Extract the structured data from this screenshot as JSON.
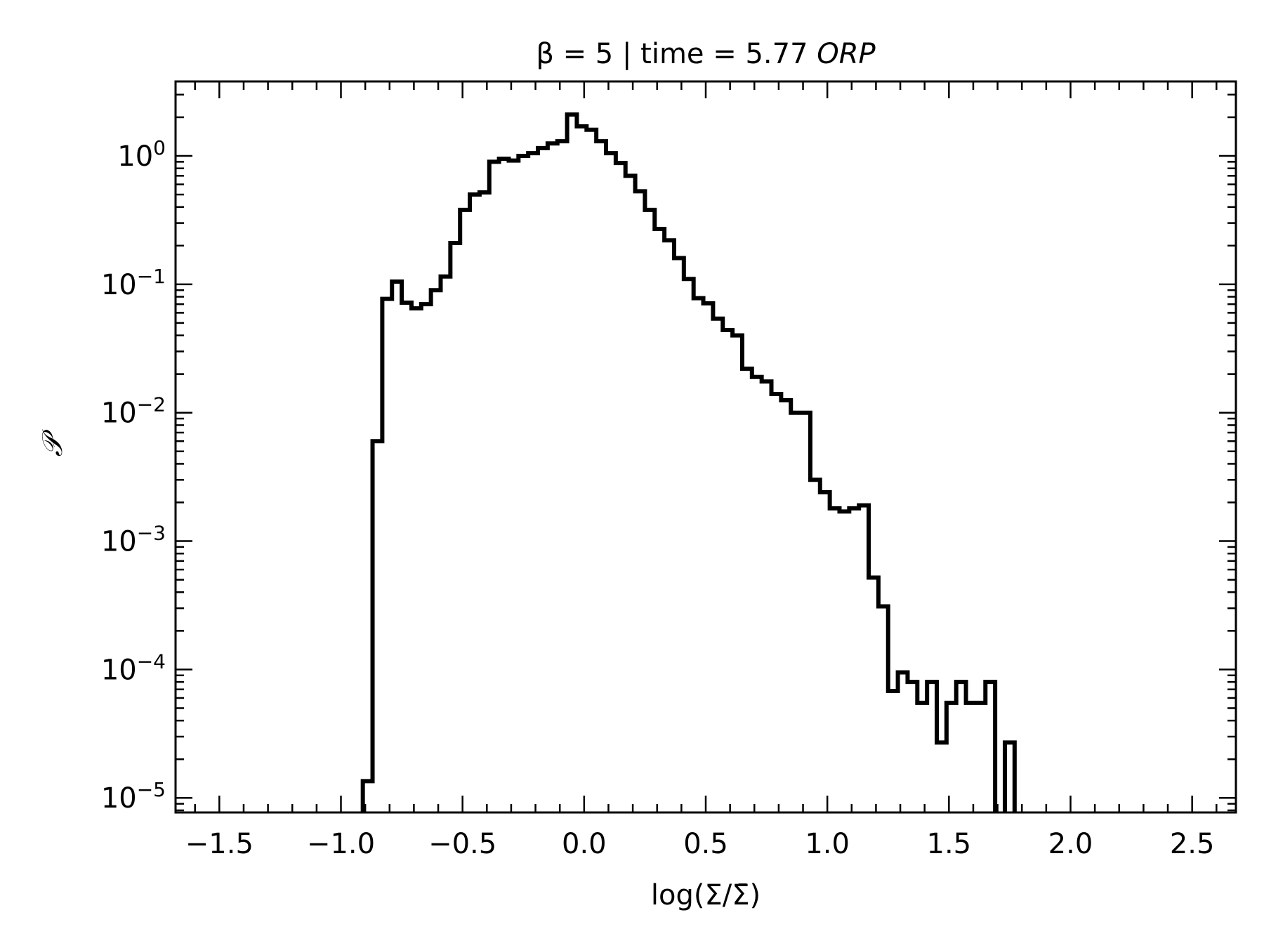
{
  "chart_data": {
    "type": "histogram-step",
    "title": {
      "prefix": "β = 5 | time = 5.77 ",
      "suffix_italic": "ORP"
    },
    "xlabel": "log(Σ/Σ̄)",
    "ylabel": "𝒫",
    "xlim": [
      -1.68,
      2.68
    ],
    "ylim": [
      7.7e-06,
      3.8
    ],
    "yscale": "log",
    "grid": false,
    "line_color": "#000000",
    "x_ticks": [
      {
        "value": -1.5,
        "label": "−1.5"
      },
      {
        "value": -1.0,
        "label": "−1.0"
      },
      {
        "value": -0.5,
        "label": "−0.5"
      },
      {
        "value": 0.0,
        "label": "0.0"
      },
      {
        "value": 0.5,
        "label": "0.5"
      },
      {
        "value": 1.0,
        "label": "1.0"
      },
      {
        "value": 1.5,
        "label": "1.5"
      },
      {
        "value": 2.0,
        "label": "2.0"
      },
      {
        "value": 2.5,
        "label": "2.5"
      }
    ],
    "y_ticks": [
      {
        "value": 1,
        "base": "10",
        "exp": "0"
      },
      {
        "value": 0.1,
        "base": "10",
        "exp": "−1"
      },
      {
        "value": 0.01,
        "base": "10",
        "exp": "−2"
      },
      {
        "value": 0.001,
        "base": "10",
        "exp": "−3"
      },
      {
        "value": 0.0001,
        "base": "10",
        "exp": "−4"
      },
      {
        "value": 1e-05,
        "base": "10",
        "exp": "−5"
      }
    ],
    "bin_edges": [
      -0.91,
      -0.87,
      -0.83,
      -0.79,
      -0.75,
      -0.71,
      -0.67,
      -0.63,
      -0.59,
      -0.55,
      -0.51,
      -0.47,
      -0.43,
      -0.39,
      -0.35,
      -0.31,
      -0.27,
      -0.23,
      -0.19,
      -0.15,
      -0.11,
      -0.07,
      -0.03,
      0.01,
      0.05,
      0.09,
      0.13,
      0.17,
      0.21,
      0.25,
      0.29,
      0.33,
      0.37,
      0.41,
      0.45,
      0.49,
      0.53,
      0.57,
      0.61,
      0.65,
      0.69,
      0.73,
      0.77,
      0.81,
      0.85,
      0.89,
      0.93,
      0.97,
      1.01,
      1.05,
      1.09,
      1.13,
      1.17,
      1.21,
      1.25,
      1.29,
      1.33,
      1.37,
      1.41,
      1.45,
      1.49,
      1.53,
      1.57,
      1.61,
      1.65,
      1.69,
      1.73,
      1.77,
      1.81,
      1.85
    ],
    "values": [
      1.35e-05,
      0.006,
      0.077,
      0.105,
      0.072,
      0.065,
      0.07,
      0.09,
      0.115,
      0.21,
      0.38,
      0.5,
      0.52,
      0.9,
      0.95,
      0.92,
      1.0,
      1.05,
      1.15,
      1.25,
      1.3,
      2.1,
      1.7,
      1.6,
      1.3,
      1.05,
      0.88,
      0.7,
      0.53,
      0.38,
      0.27,
      0.22,
      0.16,
      0.11,
      0.078,
      0.071,
      0.054,
      0.044,
      0.04,
      0.022,
      0.019,
      0.0175,
      0.014,
      0.0125,
      0.01,
      0.01,
      0.003,
      0.0024,
      0.0018,
      0.0017,
      0.0018,
      0.0019,
      0.00052,
      0.00031,
      6.8e-05,
      9.5e-05,
      8e-05,
      5.5e-05,
      8e-05,
      2.7e-05,
      5.5e-05,
      8e-05,
      5.5e-05,
      5.5e-05,
      8e-05,
      5e-06,
      2.7e-05,
      5e-06,
      5e-06
    ]
  }
}
